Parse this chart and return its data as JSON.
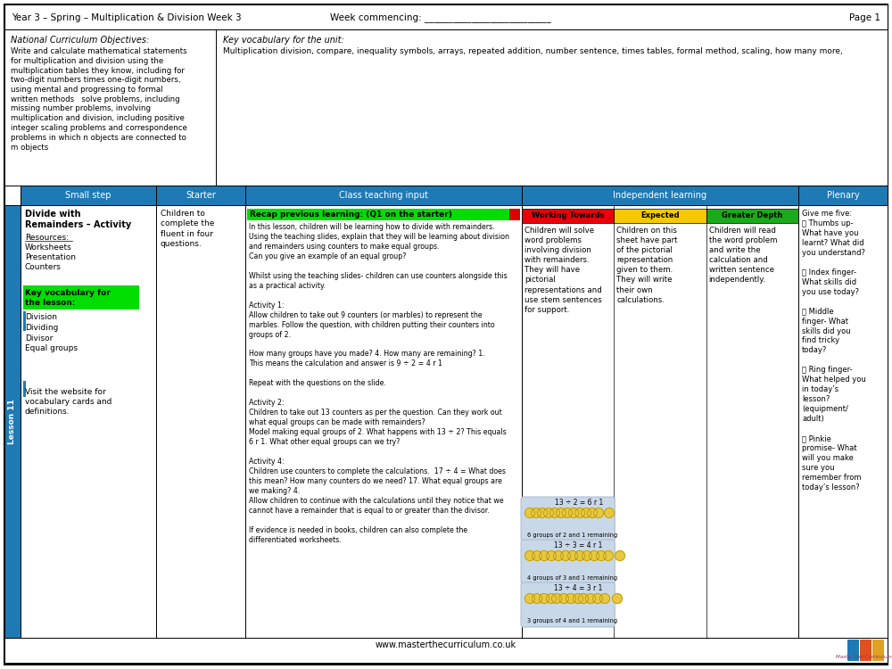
{
  "title_text": "Year 3 – Spring – Multiplication & Division Week 3",
  "week_commencing": "Week commencing: ___________________________",
  "page": "Page 1",
  "background_color": "#ffffff",
  "blue_header": "#1e7ab5",
  "blue_sidebar": "#1e7ab5",
  "green_highlight": "#00dd00",
  "red_col": "#e8000a",
  "yellow_col": "#f5c800",
  "green_col": "#1aaa1a",
  "nc_title": "National Curriculum Objectives:",
  "nc_body": "Write and calculate mathematical statements\nfor multiplication and division using the\nmultiplication tables they know, including for\ntwo-digit numbers times one-digit numbers,\nusing mental and progressing to formal\nwritten methods   solve problems, including\nmissing number problems, involving\nmultiplication and division, including positive\ninteger scaling problems and correspondence\nproblems in which n objects are connected to\nm objects",
  "vocab_title": "Key vocabulary for the unit:",
  "vocab_text": "Multiplication division, compare, inequality symbols, arrays, repeated addition, number sentence, times tables, formal method, scaling, how many more,",
  "col_headers": [
    "Small step",
    "Starter",
    "Class teaching input",
    "Independent learning",
    "Plenary"
  ],
  "indep_subheaders": [
    "Working Towards",
    "Expected",
    "Greater Depth"
  ],
  "lesson_label": "Lesson 11",
  "small_step_title": "Divide with\nRemainders – Activity",
  "resources_label": "Resources:",
  "resources_list": "Worksheets\nPresentation\nCounters",
  "key_vocab_label": "Key vocabulary for\nthe lesson:",
  "vocab_words": "Division\nDividing\nDivisor\nEqual groups",
  "visit_text": "Visit the website for\nvocabulary cards and\ndefinitions.",
  "starter_text": "Children to\ncomplete the\nfluent in four\nquestions.",
  "teaching_recap": "Recap previous learning: (Q1 on the starter)",
  "teaching_body": "In this lesson, children will be learning how to divide with remainders.\nUsing the teaching slides, explain that they will be learning about division\nand remainders using counters to make equal groups.\nCan you give an example of an equal group?\n\nWhilst using the teaching slides- children can use counters alongside this\nas a practical activity.\n\nActivity 1:\nAllow children to take out 9 counters (or marbles) to represent the\nmarbles. Follow the question, with children putting their counters into\ngroups of 2.\n\nHow many groups have you made? 4. How many are remaining? 1.\nThis means the calculation and answer is 9 ÷ 2 = 4 r 1\n\nRepeat with the questions on the slide.\n\nActivity 2:\nChildren to take out 13 counters as per the question. Can they work out\nwhat equal groups can be made with remainders?\nModel making equal groups of 2. What happens with 13 ÷ 2? This equals\n6 r 1. What other equal groups can we try?\n\nActivity 4:\nChildren use counters to complete the calculations.  17 ÷ 4 = What does\nthis mean? How many counters do we need? 17. What equal groups are\nwe making? 4.\nAllow children to continue with the calculations until they notice that we\ncannot have a remainder that is equal to or greater than the divisor.\n\nIf evidence is needed in books, children can also complete the\ndifferentiated worksheets.",
  "working_towards": "Children will solve\nword problems\ninvolving division\nwith remainders.\nThey will have\npictorial\nrepresentations and\nuse stem sentences\nfor support.",
  "expected": "Children on this\nsheet have part\nof the pictorial\nrepresentation\ngiven to them.\nThey will write\ntheir own\ncalculations.",
  "greater_depth": "Children will read\nthe word problem\nand write the\ncalculation and\nwritten sentence\nindependently.",
  "plenary_lines": "Give me five:\n🖐 Thumbs up-\nWhat have you\nlearnt? What did\nyou understand?\n\n🖐 Index finger-\nWhat skills did\nyou use today?\n\n🖐 Middle\nfinger- What\nskills did you\nfind tricky\ntoday?\n\n🖐 Ring finger-\nWhat helped you\nin today’s\nlesson?\n(equipment/\nadult)\n\n🖐 Pinkie\npromise- What\nwill you make\nsure you\nremember from\ntoday’s lesson?",
  "footer_text": "www.masterthecurriculum.co.uk",
  "counter_color": "#e8c840",
  "counter_edge": "#b09000",
  "counter_bg": "#c8d8e8",
  "row1_label": "6 groups of 2 and 1 remaining",
  "row2_label": "4 groups of 3 and 1 remaining",
  "row3_label": "3 groups of 4 and 1 remaining",
  "row1_eq": "13 ÷ 2 = 6 r 1",
  "row2_eq": "13 ÷ 3 = 4 r 1",
  "row3_eq": "13 ÷ 4 = 3 r 1"
}
